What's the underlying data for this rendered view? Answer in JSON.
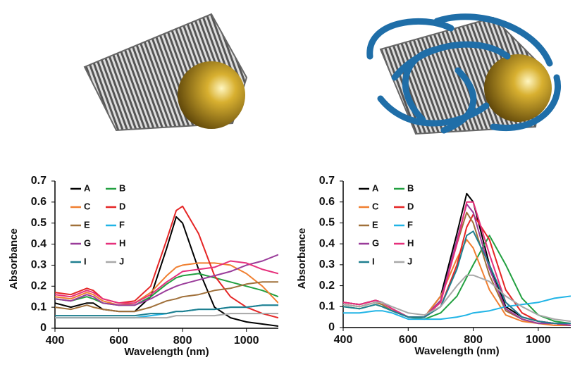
{
  "chart_data": [
    {
      "type": "line",
      "x_label": "Wavelength (nm)",
      "y_label": "Absorbance",
      "x": [
        400,
        450,
        500,
        520,
        550,
        600,
        650,
        700,
        750,
        780,
        800,
        850,
        900,
        950,
        1000,
        1050,
        1100
      ],
      "xlim": [
        400,
        1100
      ],
      "xticks": [
        400,
        600,
        800,
        1000
      ],
      "ylim": [
        0,
        0.7
      ],
      "yticks": [
        0,
        0.1,
        0.2,
        0.3,
        0.4,
        0.5,
        0.6,
        0.7
      ],
      "series": [
        {
          "name": "A",
          "color": "#000000",
          "values": [
            0.12,
            0.1,
            0.12,
            0.12,
            0.09,
            0.08,
            0.08,
            0.15,
            0.38,
            0.53,
            0.5,
            0.28,
            0.1,
            0.05,
            0.03,
            0.02,
            0.01
          ]
        },
        {
          "name": "B",
          "color": "#22a040",
          "values": [
            0.14,
            0.13,
            0.15,
            0.14,
            0.12,
            0.11,
            0.11,
            0.15,
            0.21,
            0.24,
            0.25,
            0.26,
            0.24,
            0.22,
            0.2,
            0.18,
            0.15
          ]
        },
        {
          "name": "C",
          "color": "#f07f30",
          "values": [
            0.15,
            0.14,
            0.17,
            0.16,
            0.13,
            0.11,
            0.12,
            0.17,
            0.25,
            0.29,
            0.3,
            0.31,
            0.31,
            0.3,
            0.26,
            0.2,
            0.12
          ]
        },
        {
          "name": "D",
          "color": "#e52525",
          "values": [
            0.17,
            0.16,
            0.19,
            0.18,
            0.14,
            0.12,
            0.13,
            0.2,
            0.42,
            0.56,
            0.58,
            0.45,
            0.25,
            0.15,
            0.1,
            0.07,
            0.05
          ]
        },
        {
          "name": "E",
          "color": "#a0703a",
          "values": [
            0.1,
            0.09,
            0.11,
            0.1,
            0.09,
            0.08,
            0.08,
            0.1,
            0.13,
            0.14,
            0.15,
            0.16,
            0.18,
            0.19,
            0.21,
            0.22,
            0.22
          ]
        },
        {
          "name": "F",
          "color": "#20b4e6",
          "values": [
            0.05,
            0.05,
            0.05,
            0.05,
            0.05,
            0.05,
            0.05,
            0.06,
            0.07,
            0.08,
            0.08,
            0.09,
            0.09,
            0.1,
            0.1,
            0.11,
            0.11
          ]
        },
        {
          "name": "G",
          "color": "#9a3c9a",
          "values": [
            0.14,
            0.13,
            0.16,
            0.15,
            0.12,
            0.11,
            0.11,
            0.14,
            0.18,
            0.2,
            0.21,
            0.23,
            0.25,
            0.27,
            0.3,
            0.32,
            0.35
          ]
        },
        {
          "name": "H",
          "color": "#e6307c",
          "values": [
            0.16,
            0.15,
            0.18,
            0.17,
            0.14,
            0.12,
            0.12,
            0.16,
            0.22,
            0.25,
            0.27,
            0.28,
            0.29,
            0.32,
            0.31,
            0.28,
            0.26
          ]
        },
        {
          "name": "I",
          "color": "#1f7f8f",
          "values": [
            0.06,
            0.06,
            0.06,
            0.06,
            0.06,
            0.06,
            0.06,
            0.07,
            0.07,
            0.08,
            0.08,
            0.09,
            0.09,
            0.1,
            0.1,
            0.11,
            0.11
          ]
        },
        {
          "name": "J",
          "color": "#a8a8a8",
          "values": [
            0.05,
            0.05,
            0.05,
            0.05,
            0.05,
            0.05,
            0.05,
            0.05,
            0.05,
            0.06,
            0.06,
            0.06,
            0.06,
            0.07,
            0.07,
            0.07,
            0.07
          ]
        }
      ]
    },
    {
      "type": "line",
      "x_label": "Wavelength (nm)",
      "y_label": "Absorbance",
      "x": [
        400,
        450,
        500,
        520,
        550,
        600,
        650,
        700,
        750,
        780,
        800,
        850,
        900,
        950,
        1000,
        1050,
        1100
      ],
      "xlim": [
        400,
        1100
      ],
      "xticks": [
        400,
        600,
        800,
        1000
      ],
      "ylim": [
        0,
        0.7
      ],
      "yticks": [
        0,
        0.1,
        0.2,
        0.3,
        0.4,
        0.5,
        0.6,
        0.7
      ],
      "series": [
        {
          "name": "A",
          "color": "#000000",
          "values": [
            0.12,
            0.11,
            0.13,
            0.12,
            0.09,
            0.05,
            0.05,
            0.15,
            0.45,
            0.64,
            0.6,
            0.3,
            0.1,
            0.05,
            0.03,
            0.02,
            0.01
          ]
        },
        {
          "name": "B",
          "color": "#22a040",
          "values": [
            0.1,
            0.09,
            0.11,
            0.1,
            0.08,
            0.05,
            0.04,
            0.07,
            0.15,
            0.24,
            0.3,
            0.44,
            0.3,
            0.14,
            0.06,
            0.03,
            0.02
          ]
        },
        {
          "name": "C",
          "color": "#f07f30",
          "values": [
            0.11,
            0.1,
            0.12,
            0.11,
            0.08,
            0.05,
            0.05,
            0.15,
            0.33,
            0.42,
            0.38,
            0.18,
            0.06,
            0.03,
            0.02,
            0.01,
            0.01
          ]
        },
        {
          "name": "D",
          "color": "#e52525",
          "values": [
            0.12,
            0.11,
            0.13,
            0.12,
            0.09,
            0.05,
            0.05,
            0.1,
            0.3,
            0.48,
            0.54,
            0.42,
            0.18,
            0.07,
            0.03,
            0.02,
            0.02
          ]
        },
        {
          "name": "E",
          "color": "#a0703a",
          "values": [
            0.11,
            0.1,
            0.12,
            0.11,
            0.08,
            0.05,
            0.05,
            0.13,
            0.4,
            0.55,
            0.5,
            0.25,
            0.08,
            0.04,
            0.02,
            0.02,
            0.01
          ]
        },
        {
          "name": "F",
          "color": "#20b4e6",
          "values": [
            0.07,
            0.07,
            0.08,
            0.08,
            0.07,
            0.04,
            0.04,
            0.04,
            0.05,
            0.06,
            0.07,
            0.08,
            0.1,
            0.11,
            0.12,
            0.14,
            0.15
          ]
        },
        {
          "name": "G",
          "color": "#9a3c9a",
          "values": [
            0.12,
            0.11,
            0.13,
            0.12,
            0.09,
            0.05,
            0.05,
            0.13,
            0.42,
            0.59,
            0.55,
            0.28,
            0.09,
            0.04,
            0.02,
            0.02,
            0.01
          ]
        },
        {
          "name": "H",
          "color": "#e6307c",
          "values": [
            0.12,
            0.11,
            0.13,
            0.12,
            0.09,
            0.05,
            0.05,
            0.12,
            0.4,
            0.6,
            0.6,
            0.35,
            0.12,
            0.05,
            0.03,
            0.02,
            0.02
          ]
        },
        {
          "name": "I",
          "color": "#1f7f8f",
          "values": [
            0.1,
            0.09,
            0.11,
            0.1,
            0.08,
            0.05,
            0.05,
            0.1,
            0.28,
            0.44,
            0.46,
            0.3,
            0.12,
            0.05,
            0.03,
            0.02,
            0.02
          ]
        },
        {
          "name": "J",
          "color": "#a8a8a8",
          "values": [
            0.11,
            0.1,
            0.12,
            0.12,
            0.1,
            0.07,
            0.06,
            0.1,
            0.2,
            0.25,
            0.25,
            0.22,
            0.15,
            0.1,
            0.06,
            0.04,
            0.03
          ]
        }
      ]
    }
  ]
}
